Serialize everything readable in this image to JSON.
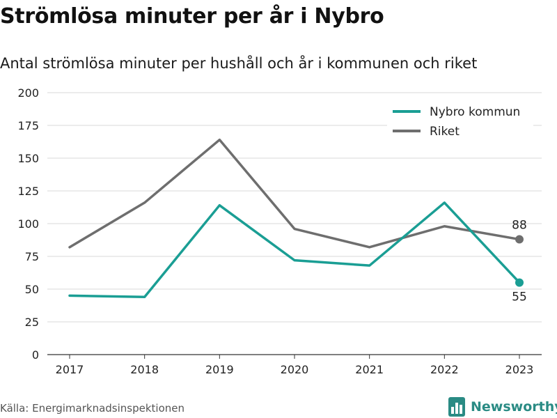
{
  "header": {
    "title": "Strömlösa minuter per år i Nybro",
    "subtitle": "Antal strömlösa minuter per hushåll och år i kommunen och riket"
  },
  "footer": {
    "source": "Källa: Energimarknadsinspektionen",
    "brand": "Newsworthy",
    "brand_icon": "bar-chart-logo-icon"
  },
  "colors": {
    "nybro": "#1a9e94",
    "riket": "#6e6e6e",
    "grid": "#d9d9d9",
    "brand": "#2a8b84"
  },
  "chart_data": {
    "type": "line",
    "title": "Strömlösa minuter per år i Nybro",
    "subtitle": "Antal strömlösa minuter per hushåll och år i kommunen och riket",
    "x": [
      2017,
      2018,
      2019,
      2020,
      2021,
      2022,
      2023
    ],
    "series": [
      {
        "name": "Nybro kommun",
        "values": [
          45,
          44,
          114,
          72,
          68,
          116,
          55
        ],
        "color": "#1a9e94"
      },
      {
        "name": "Riket",
        "values": [
          82,
          116,
          164,
          96,
          82,
          98,
          88
        ],
        "color": "#6e6e6e"
      }
    ],
    "end_labels": [
      "55",
      "88"
    ],
    "yticks": [
      "0",
      "25",
      "50",
      "75",
      "100",
      "125",
      "150",
      "175",
      "200"
    ],
    "xticks": [
      "2017",
      "2018",
      "2019",
      "2020",
      "2021",
      "2022",
      "2023"
    ],
    "ylim": [
      0,
      200
    ],
    "grid": true,
    "legend_position": "top-right"
  }
}
